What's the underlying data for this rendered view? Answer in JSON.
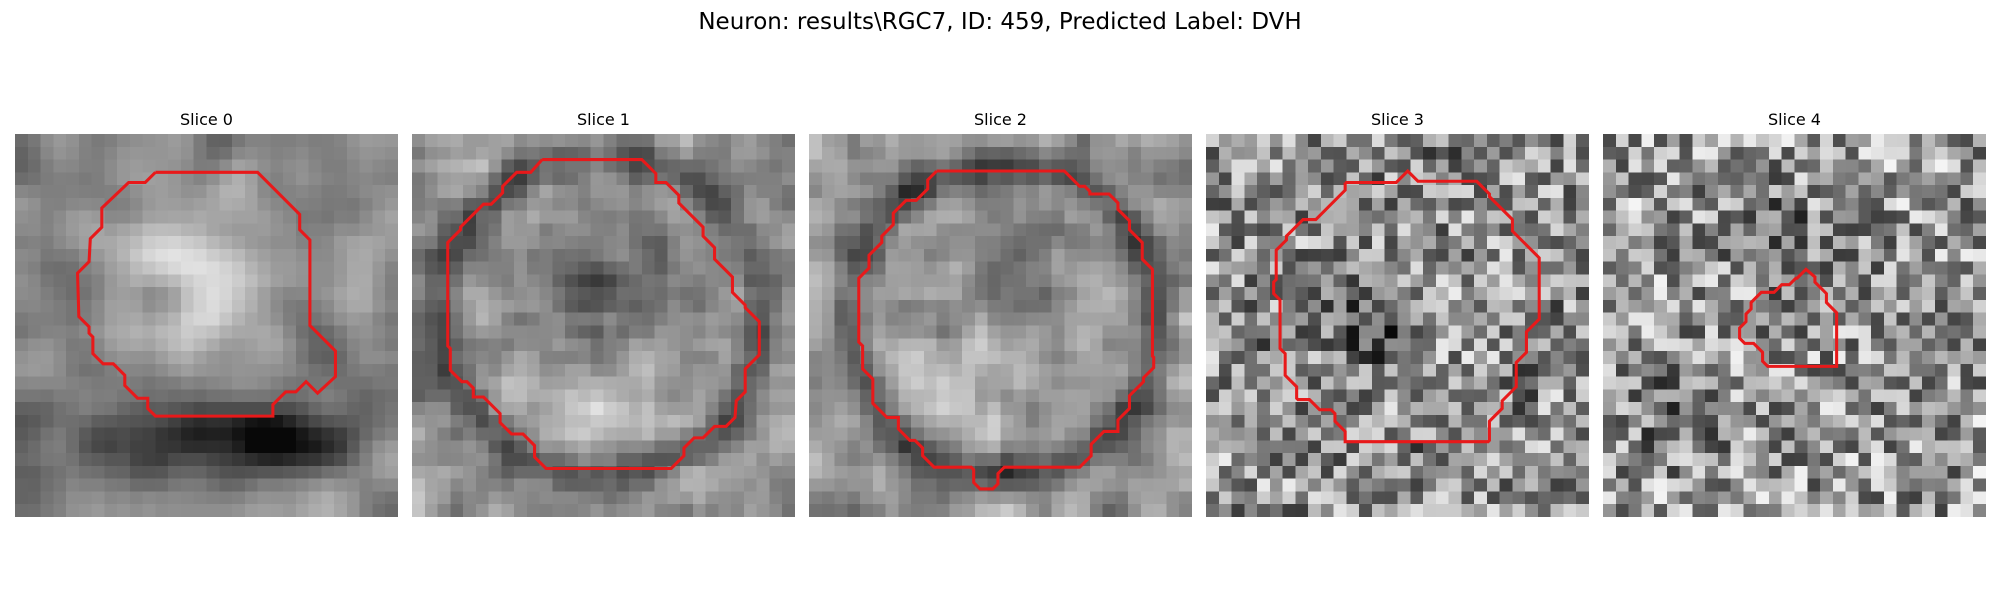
{
  "figure": {
    "title": "Neuron: results\\RGC7, ID: 459, Predicted Label: DVH"
  },
  "panels": [
    {
      "title": "Slice 0",
      "image_description": "grayscale 30x30 EM-like micrograph of a bright rounded cell body, with a dark band below",
      "contour_color": "#e8191a"
    },
    {
      "title": "Slice 1",
      "image_description": "grayscale 30x30 micrograph of a large circular cell with a dark ring and dark nucleus center",
      "contour_color": "#e8191a"
    },
    {
      "title": "Slice 2",
      "image_description": "grayscale 30x30 micrograph of a circular cell with a dark outer ring",
      "contour_color": "#e8191a"
    },
    {
      "title": "Slice 3",
      "image_description": "grayscale 30x30 noisy micrograph with a dark cluster left of center",
      "contour_color": "#e8191a"
    },
    {
      "title": "Slice 4",
      "image_description": "grayscale 30x30 noisy micrograph with a small contoured region near center",
      "contour_color": "#e8191a"
    }
  ]
}
